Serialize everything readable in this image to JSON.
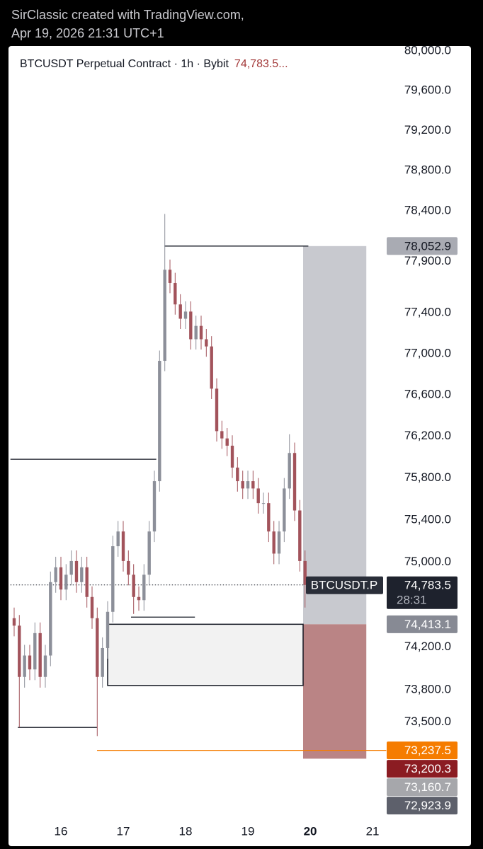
{
  "header": {
    "line1": "SirClassic created with TradingView.com,",
    "line2": "Apr 19, 2026 21:31 UTC+1"
  },
  "chart_data": {
    "type": "candlestick",
    "title": "BTCUSDT Perpetual Contract · 1h · Bybit",
    "title_price": "74,783.5...",
    "symbol_label": "BTCUSDT.P",
    "countdown": "28:31",
    "log_scale": true,
    "ylim": [
      72590,
      80050
    ],
    "yticks": [
      {
        "value": 80000,
        "label": "80,000.0"
      },
      {
        "value": 79600,
        "label": "79,600.0"
      },
      {
        "value": 79200,
        "label": "79,200.0"
      },
      {
        "value": 78800,
        "label": "78,800.0"
      },
      {
        "value": 78400,
        "label": "78,400.0"
      },
      {
        "value": 77900,
        "label": "77,900.0"
      },
      {
        "value": 77400,
        "label": "77,400.0"
      },
      {
        "value": 77000,
        "label": "77,000.0"
      },
      {
        "value": 76600,
        "label": "76,600.0"
      },
      {
        "value": 76200,
        "label": "76,200.0"
      },
      {
        "value": 75800,
        "label": "75,800.0"
      },
      {
        "value": 75400,
        "label": "75,400.0"
      },
      {
        "value": 75000,
        "label": "75,000.0"
      },
      {
        "value": 74200,
        "label": "74,200.0"
      },
      {
        "value": 73800,
        "label": "73,800.0"
      },
      {
        "value": 73500,
        "label": "73,500.0"
      }
    ],
    "xlim": [
      15.19,
      21.22
    ],
    "xticks": [
      16,
      17,
      18,
      19,
      20,
      21
    ],
    "highlight_xtick": 20,
    "up_color": "#8c8f99",
    "down_color": "#a2535b",
    "candles": {
      "x": [
        15.25,
        15.333,
        15.417,
        15.5,
        15.583,
        15.667,
        15.75,
        15.833,
        15.917,
        16,
        16.083,
        16.167,
        16.25,
        16.333,
        16.417,
        16.5,
        16.583,
        16.667,
        16.75,
        16.833,
        16.917,
        17,
        17.083,
        17.167,
        17.25,
        17.333,
        17.417,
        17.5,
        17.583,
        17.667,
        17.75,
        17.833,
        17.917,
        18,
        18.083,
        18.167,
        18.25,
        18.333,
        18.417,
        18.5,
        18.583,
        18.667,
        18.75,
        18.833,
        18.917,
        19,
        19.083,
        19.167,
        19.25,
        19.333,
        19.417,
        19.5,
        19.583,
        19.667,
        19.75,
        19.833,
        19.917
      ],
      "open": [
        74470,
        74400,
        73920,
        74120,
        73990,
        74330,
        73920,
        74120,
        74810,
        74950,
        74740,
        74880,
        75010,
        74810,
        74950,
        74670,
        74470,
        73920,
        74190,
        74530,
        75150,
        75290,
        75010,
        74880,
        74670,
        74640,
        74880,
        75290,
        75770,
        76930,
        77820,
        77690,
        77480,
        77340,
        77410,
        77140,
        77270,
        77140,
        77070,
        76660,
        76250,
        76180,
        76110,
        75900,
        75770,
        75700,
        75770,
        75700,
        75560,
        75560,
        75290,
        75080,
        75290,
        75700,
        76040,
        75490,
        75010
      ],
      "high": [
        74570,
        74500,
        74220,
        74220,
        74430,
        74430,
        74220,
        74910,
        75050,
        75050,
        74980,
        75110,
        75110,
        75050,
        75050,
        74770,
        74570,
        74290,
        74630,
        75250,
        75390,
        75390,
        75110,
        74980,
        74770,
        74980,
        75390,
        75870,
        77030,
        78370,
        77920,
        77790,
        77580,
        77510,
        77510,
        77370,
        77370,
        77240,
        77170,
        76760,
        76350,
        76280,
        76210,
        76000,
        75870,
        75870,
        75870,
        75800,
        75660,
        75660,
        75390,
        75390,
        75800,
        76220,
        76140,
        75590,
        75110
      ],
      "low": [
        74300,
        73450,
        73820,
        73890,
        73890,
        73820,
        73820,
        74020,
        74710,
        74640,
        74640,
        74780,
        74710,
        74710,
        74570,
        74370,
        73370,
        73820,
        74090,
        74430,
        75050,
        74910,
        74780,
        74510,
        74540,
        74540,
        74780,
        75190,
        75670,
        76830,
        77590,
        77380,
        77240,
        77240,
        77040,
        77040,
        77040,
        76970,
        76560,
        76150,
        76080,
        76010,
        75800,
        75670,
        75600,
        75600,
        75600,
        75460,
        75460,
        75190,
        74980,
        74980,
        75190,
        75600,
        75390,
        74910,
        74570
      ],
      "close": [
        74400,
        73920,
        74120,
        73990,
        74330,
        73920,
        74120,
        74810,
        74950,
        74740,
        74880,
        75010,
        74810,
        74950,
        74670,
        74470,
        73920,
        74190,
        74530,
        75150,
        75290,
        75010,
        74880,
        74670,
        74640,
        74880,
        75290,
        75770,
        76930,
        77820,
        77690,
        77480,
        77340,
        77410,
        77140,
        77270,
        77140,
        77070,
        76660,
        76250,
        76180,
        76110,
        75900,
        75770,
        75700,
        75770,
        75700,
        75560,
        75560,
        75290,
        75080,
        75290,
        75700,
        76040,
        75490,
        75010,
        74783.5
      ]
    },
    "last_price": {
      "value": 74783.5,
      "label": "74,783.5"
    },
    "price_labels": [
      {
        "value": 78052.9,
        "label": "78,052.9",
        "color": "#a9abb3",
        "text_color": "#131722"
      },
      {
        "value": 74413.1,
        "label": "74,413.1",
        "color": "#878a94",
        "text_color": "#ffffff"
      },
      {
        "value": 73237.5,
        "label": "73,237.5",
        "color": "#f57c00",
        "text_color": "#ffffff"
      },
      {
        "value": 73200.3,
        "label": "73,200.3",
        "color": "#8b1c22",
        "text_color": "#ffffff"
      },
      {
        "value": 73160.7,
        "label": "73,160.7",
        "color": "#a6a7ab",
        "text_color": "#ffffff"
      },
      {
        "value": 72923.9,
        "label": "72,923.9",
        "color": "#5d606b",
        "text_color": "#ffffff"
      }
    ],
    "lines": [
      {
        "y": 78052.9,
        "x": [
          17.66,
          19.97
        ],
        "color": "#131722"
      },
      {
        "y": 75980,
        "x": [
          15.19,
          17.53
        ],
        "color": "#131722"
      },
      {
        "y": 74480,
        "x": [
          17.125,
          18.15
        ],
        "color": "#131722"
      },
      {
        "y": 73450,
        "x": [
          15.31,
          16.58
        ],
        "color": "#131722"
      },
      {
        "y": 73237.5,
        "x": [
          16.58,
          21.22
        ],
        "color": "#f57c00"
      }
    ],
    "box": {
      "x": [
        16.75,
        19.886
      ],
      "y": [
        73840,
        74413.1
      ]
    },
    "position": {
      "x": [
        19.886,
        20.9
      ],
      "stop": 78052.9,
      "entry": 74413.1,
      "target": 73160.7
    }
  }
}
